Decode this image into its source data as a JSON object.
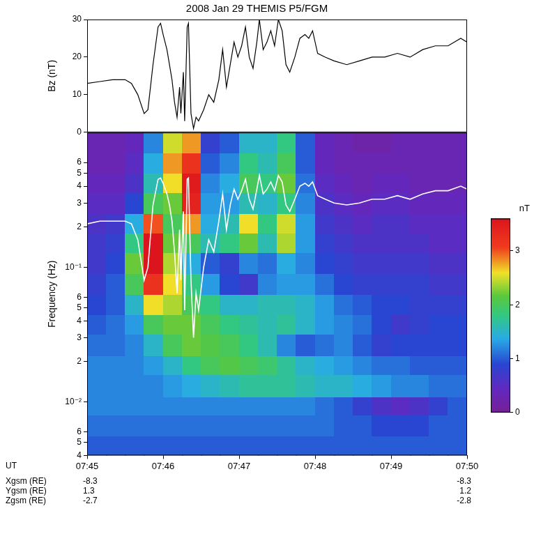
{
  "chart_data": [
    {
      "type": "line",
      "title": "2008 Jan 29 THEMIS P5/FGM",
      "y_label": "Bz (nT)",
      "x": [
        "07:45:00",
        "07:45:10",
        "07:45:20",
        "07:45:30",
        "07:45:35",
        "07:45:40",
        "07:45:45",
        "07:45:48",
        "07:45:52",
        "07:45:56",
        "07:45:58",
        "07:46:00",
        "07:46:03",
        "07:46:05",
        "07:46:07",
        "07:46:09",
        "07:46:11",
        "07:46:13",
        "07:46:14",
        "07:46:16",
        "07:46:17",
        "07:46:19",
        "07:46:20",
        "07:46:22",
        "07:46:24",
        "07:46:26",
        "07:46:28",
        "07:46:32",
        "07:46:36",
        "07:46:40",
        "07:46:44",
        "07:46:47",
        "07:46:50",
        "07:46:53",
        "07:46:56",
        "07:46:59",
        "07:47:02",
        "07:47:05",
        "07:47:08",
        "07:47:11",
        "07:47:14",
        "07:47:16",
        "07:47:19",
        "07:47:22",
        "07:47:25",
        "07:47:28",
        "07:47:31",
        "07:47:34",
        "07:47:37",
        "07:47:40",
        "07:47:44",
        "07:47:48",
        "07:47:52",
        "07:47:55",
        "07:47:58",
        "07:48:02",
        "07:48:08",
        "07:48:15",
        "07:48:25",
        "07:48:35",
        "07:48:45",
        "07:48:55",
        "07:49:05",
        "07:49:15",
        "07:49:25",
        "07:49:35",
        "07:49:45",
        "07:49:55",
        "07:50:00"
      ],
      "series": [
        {
          "color": "#000000",
          "values": [
            13,
            13.5,
            14,
            14,
            13,
            10,
            5,
            6,
            18,
            28,
            29,
            26,
            22,
            18,
            14,
            8,
            4,
            12,
            5,
            16,
            3,
            28,
            29,
            5,
            1,
            4,
            3,
            6,
            10,
            8,
            14,
            22,
            12,
            18,
            24,
            20,
            23,
            28,
            20,
            17,
            24,
            30,
            22,
            24,
            27,
            23,
            30,
            27,
            18,
            16,
            20,
            25,
            26,
            25,
            27,
            21,
            20,
            19,
            18,
            19,
            20,
            20,
            21,
            20,
            22,
            23,
            23,
            25,
            24
          ]
        }
      ],
      "xlim": [
        "07:45",
        "07:50"
      ],
      "xticks": [
        "07:45",
        "07:46",
        "07:47",
        "07:48",
        "07:49",
        "07:50"
      ],
      "ylim": [
        0,
        30
      ],
      "yticks": [
        0,
        10,
        20,
        30
      ],
      "grid": false,
      "tick_labels": "y"
    },
    {
      "type": "heatmap",
      "y_label": "Frequency (Hz)",
      "x_label": "UT",
      "log": "y",
      "grid": false,
      "xlim": [
        "07:45",
        "07:50"
      ],
      "xticks": [
        "07:45",
        "07:46",
        "07:47",
        "07:48",
        "07:49",
        "07:50"
      ],
      "ylim": [
        0.004,
        1
      ],
      "yticks": [
        {
          "value": 0.004,
          "label": "4"
        },
        {
          "value": 0.005,
          "label": "5"
        },
        {
          "value": 0.006,
          "label": "6"
        },
        {
          "value": 0.01,
          "label": "10⁻²"
        },
        {
          "value": 0.02,
          "label": "2"
        },
        {
          "value": 0.03,
          "label": "3"
        },
        {
          "value": 0.04,
          "label": "4"
        },
        {
          "value": 0.05,
          "label": "5"
        },
        {
          "value": 0.06,
          "label": "6"
        },
        {
          "value": 0.1,
          "label": "10⁻¹"
        },
        {
          "value": 0.2,
          "label": "2"
        },
        {
          "value": 0.3,
          "label": "3"
        },
        {
          "value": 0.4,
          "label": "4"
        },
        {
          "value": 0.5,
          "label": "5"
        },
        {
          "value": 0.6,
          "label": "6"
        }
      ],
      "x_edges": [
        "07:45:00",
        "07:45:15",
        "07:45:30",
        "07:45:45",
        "07:46:00",
        "07:46:15",
        "07:46:30",
        "07:46:45",
        "07:47:00",
        "07:47:15",
        "07:47:30",
        "07:47:45",
        "07:48:00",
        "07:48:15",
        "07:48:30",
        "07:48:45",
        "07:49:00",
        "07:49:15",
        "07:49:30",
        "07:49:45",
        "07:50:00"
      ],
      "y_edges": [
        0.004,
        0.0056,
        0.008,
        0.011,
        0.016,
        0.022,
        0.032,
        0.045,
        0.063,
        0.09,
        0.13,
        0.18,
        0.25,
        0.36,
        0.5,
        0.71,
        1
      ],
      "z": [
        [
          1.0,
          1.0,
          1.0,
          1.0,
          1.0,
          1.0,
          1.0,
          1.0,
          1.0,
          1.0,
          1.0,
          1.0,
          1.0,
          1.0,
          1.0,
          1.0,
          1.0,
          1.0,
          1.0,
          1.0
        ],
        [
          1.1,
          1.1,
          1.1,
          1.1,
          1.1,
          1.1,
          1.1,
          1.1,
          1.1,
          1.1,
          1.1,
          1.1,
          1.1,
          1.0,
          1.0,
          0.9,
          0.9,
          0.9,
          1.0,
          1.0
        ],
        [
          1.2,
          1.2,
          1.2,
          1.2,
          1.2,
          1.2,
          1.2,
          1.2,
          1.2,
          1.2,
          1.2,
          1.2,
          1.1,
          1.0,
          0.8,
          0.6,
          0.5,
          0.6,
          0.8,
          1.0
        ],
        [
          1.2,
          1.2,
          1.2,
          1.2,
          1.3,
          1.4,
          1.5,
          1.6,
          1.7,
          1.7,
          1.7,
          1.6,
          1.5,
          1.5,
          1.4,
          1.3,
          1.2,
          1.2,
          1.1,
          1.1
        ],
        [
          1.2,
          1.2,
          1.2,
          1.3,
          1.5,
          1.8,
          2.0,
          2.1,
          2.0,
          1.9,
          1.7,
          1.5,
          1.4,
          1.3,
          1.2,
          1.1,
          1.1,
          1.0,
          1.0,
          1.0
        ],
        [
          1.1,
          1.1,
          1.2,
          1.5,
          2.0,
          2.2,
          2.1,
          2.0,
          1.8,
          1.6,
          1.2,
          1.0,
          1.1,
          1.2,
          1.0,
          0.8,
          0.9,
          0.9,
          0.9,
          0.9
        ],
        [
          1.0,
          1.1,
          1.3,
          2.0,
          2.2,
          2.2,
          2.0,
          1.8,
          1.7,
          1.6,
          1.7,
          1.5,
          1.3,
          1.2,
          1.1,
          0.9,
          0.7,
          0.8,
          0.9,
          0.9
        ],
        [
          0.9,
          1.0,
          1.5,
          2.6,
          2.4,
          2.0,
          1.8,
          1.5,
          1.5,
          1.6,
          1.6,
          1.5,
          1.3,
          1.1,
          1.0,
          0.9,
          0.9,
          0.8,
          0.8,
          0.8
        ],
        [
          0.8,
          1.0,
          2.0,
          3.2,
          2.6,
          1.8,
          1.3,
          0.9,
          0.7,
          1.2,
          1.3,
          1.3,
          1.1,
          0.9,
          0.8,
          0.8,
          0.8,
          0.8,
          0.7,
          0.7
        ],
        [
          0.7,
          0.9,
          2.2,
          3.6,
          2.4,
          1.4,
          1.0,
          0.8,
          1.2,
          1.1,
          1.4,
          1.2,
          0.9,
          0.8,
          0.7,
          0.7,
          0.7,
          0.7,
          0.6,
          0.6
        ],
        [
          0.7,
          0.8,
          1.8,
          3.6,
          2.2,
          2.0,
          1.6,
          1.8,
          2.2,
          1.6,
          2.4,
          1.3,
          0.8,
          0.7,
          0.6,
          0.6,
          0.6,
          0.6,
          0.5,
          0.5
        ],
        [
          0.6,
          0.7,
          1.4,
          3.0,
          2.0,
          2.8,
          1.4,
          1.6,
          2.6,
          1.8,
          2.5,
          1.3,
          0.7,
          0.6,
          0.5,
          0.6,
          0.6,
          0.5,
          0.5,
          0.5
        ],
        [
          0.5,
          0.5,
          0.9,
          2.0,
          2.2,
          3.4,
          1.3,
          1.3,
          1.6,
          1.5,
          1.8,
          1.2,
          0.6,
          0.5,
          0.4,
          0.5,
          0.5,
          0.4,
          0.4,
          0.4
        ],
        [
          0.4,
          0.4,
          0.6,
          1.6,
          2.6,
          3.5,
          1.2,
          1.4,
          2.0,
          1.8,
          2.2,
          1.1,
          0.5,
          0.4,
          0.3,
          0.4,
          0.4,
          0.3,
          0.3,
          0.3
        ],
        [
          0.3,
          0.3,
          0.5,
          1.4,
          2.8,
          3.2,
          1.0,
          1.2,
          1.8,
          1.6,
          2.0,
          1.0,
          0.4,
          0.3,
          0.3,
          0.3,
          0.3,
          0.3,
          0.3,
          0.3
        ],
        [
          0.3,
          0.3,
          0.4,
          1.2,
          2.5,
          2.8,
          0.8,
          1.0,
          1.5,
          1.5,
          1.8,
          1.0,
          0.4,
          0.3,
          0.2,
          0.2,
          0.3,
          0.3,
          0.3,
          0.3
        ]
      ],
      "colorbar": {
        "label": "nT",
        "zlim": [
          0,
          3.6
        ],
        "zticks": [
          0,
          1,
          2,
          3
        ]
      },
      "x": [
        "07:45:00",
        "07:45:10",
        "07:45:20",
        "07:45:30",
        "07:45:35",
        "07:45:40",
        "07:45:45",
        "07:45:48",
        "07:45:52",
        "07:45:56",
        "07:45:58",
        "07:46:00",
        "07:46:03",
        "07:46:05",
        "07:46:07",
        "07:46:09",
        "07:46:11",
        "07:46:13",
        "07:46:14",
        "07:46:16",
        "07:46:17",
        "07:46:19",
        "07:46:20",
        "07:46:22",
        "07:46:24",
        "07:46:26",
        "07:46:28",
        "07:46:32",
        "07:46:36",
        "07:46:40",
        "07:46:44",
        "07:46:47",
        "07:46:50",
        "07:46:53",
        "07:46:56",
        "07:46:59",
        "07:47:02",
        "07:47:05",
        "07:47:08",
        "07:47:11",
        "07:47:14",
        "07:47:16",
        "07:47:19",
        "07:47:22",
        "07:47:25",
        "07:47:28",
        "07:47:31",
        "07:47:34",
        "07:47:37",
        "07:47:40",
        "07:47:44",
        "07:47:48",
        "07:47:52",
        "07:47:55",
        "07:47:58",
        "07:48:02",
        "07:48:08",
        "07:48:15",
        "07:48:25",
        "07:48:35",
        "07:48:45",
        "07:48:55",
        "07:49:05",
        "07:49:15",
        "07:49:25",
        "07:49:35",
        "07:49:45",
        "07:49:55",
        "07:50:00"
      ],
      "series": [
        {
          "type": "line",
          "color": "#ffffff",
          "values": [
            0.21,
            0.22,
            0.22,
            0.22,
            0.21,
            0.16,
            0.08,
            0.1,
            0.29,
            0.45,
            0.46,
            0.42,
            0.35,
            0.29,
            0.22,
            0.13,
            0.064,
            0.19,
            0.08,
            0.26,
            0.048,
            0.45,
            0.46,
            0.08,
            0.03,
            0.064,
            0.048,
            0.1,
            0.16,
            0.13,
            0.22,
            0.35,
            0.19,
            0.29,
            0.38,
            0.32,
            0.37,
            0.45,
            0.32,
            0.27,
            0.38,
            0.48,
            0.35,
            0.38,
            0.43,
            0.37,
            0.48,
            0.43,
            0.29,
            0.26,
            0.32,
            0.4,
            0.42,
            0.4,
            0.43,
            0.34,
            0.32,
            0.3,
            0.29,
            0.3,
            0.32,
            0.32,
            0.34,
            0.32,
            0.35,
            0.37,
            0.37,
            0.4,
            0.38
          ]
        }
      ]
    }
  ],
  "ephemeris": {
    "rows": [
      {
        "label": "Xgsm (RE)",
        "start": -8.3,
        "end": -8.3
      },
      {
        "label": "Ygsm (RE)",
        "start": 1.3,
        "end": 1.2
      },
      {
        "label": "Zgsm (RE)",
        "start": -2.7,
        "end": -2.8
      }
    ]
  }
}
